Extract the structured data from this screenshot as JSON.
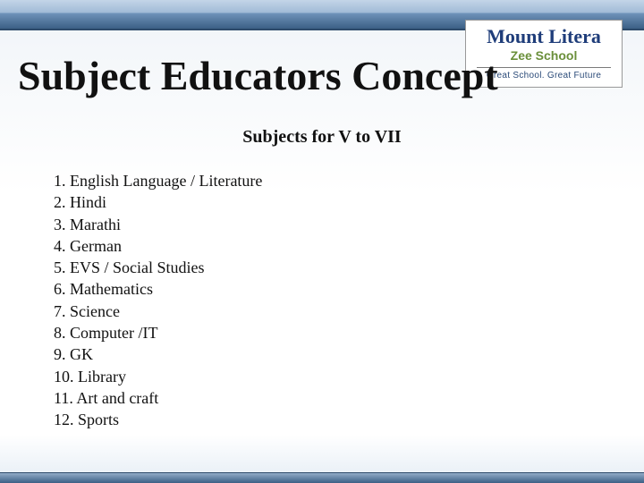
{
  "title": "Subject Educators Concept",
  "subtitle": "Subjects for V to VII",
  "logo": {
    "main": "Mount Litera",
    "sub": "Zee School",
    "tagline": "Great School. Great Future"
  },
  "subjects": [
    "1. English Language / Literature",
    "2. Hindi",
    "3. Marathi",
    "4. German",
    "5. EVS / Social Studies",
    "6. Mathematics",
    "7. Science",
    "8. Computer /IT",
    "9. GK",
    "10. Library",
    "11. Art and craft",
    "12. Sports"
  ],
  "colors": {
    "title": "#111111",
    "logo_main": "#1f3d7a",
    "logo_sub": "#6a8f3a",
    "logo_tag": "#2a4a78",
    "bar_top": "#3b5f85",
    "background": "#ffffff"
  },
  "typography": {
    "title_fontsize": 46,
    "subtitle_fontsize": 20,
    "list_fontsize": 18,
    "font_family": "Times New Roman"
  }
}
